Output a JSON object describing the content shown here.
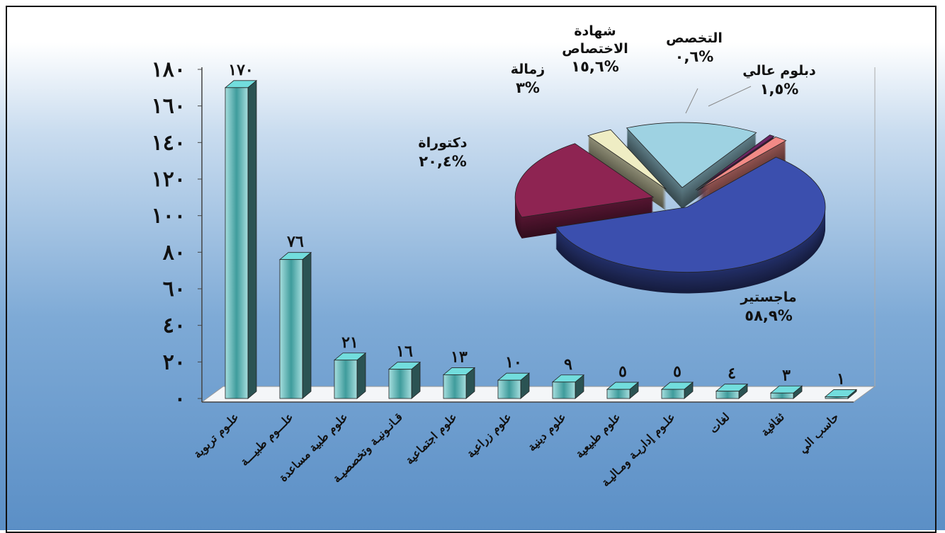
{
  "chart_data": [
    {
      "type": "bar3d",
      "categories": [
        "علـوم تربوية",
        "علـــوم طبيـــة",
        "علوم طبية مساعدة",
        "قـانـونيـة وتخصصيـة",
        "علوم اجتماعية",
        "علوم زراعية",
        "علوم دينية",
        "علوم طبيعية",
        "علـوم إداريـة ومـاليـة",
        "لغات",
        "ثقافية",
        "حاسب الي"
      ],
      "values": [
        170,
        76,
        21,
        16,
        13,
        10,
        9,
        5,
        5,
        4,
        3,
        1
      ],
      "value_labels": [
        "١٧٠",
        "٧٦",
        "٢١",
        "١٦",
        "١٣",
        "١٠",
        "٩",
        "٥",
        "٥",
        "٤",
        "٣",
        "١"
      ],
      "color": "#5fb8b8",
      "ylim": [
        0,
        180
      ],
      "yticks": [
        {
          "value": 0,
          "label": "٠"
        },
        {
          "value": 20,
          "label": "٢٠"
        },
        {
          "value": 40,
          "label": "٤٠"
        },
        {
          "value": 60,
          "label": "٦٠"
        },
        {
          "value": 80,
          "label": "٨٠"
        },
        {
          "value": 100,
          "label": "١٠٠"
        },
        {
          "value": 120,
          "label": "١٢٠"
        },
        {
          "value": 140,
          "label": "١٤٠"
        },
        {
          "value": 160,
          "label": "١٦٠"
        },
        {
          "value": 180,
          "label": "١٨٠"
        }
      ]
    },
    {
      "type": "pie3d",
      "categories": [
        "ماجستير",
        "دكتوراة",
        "زمالة",
        "شهادة الاختصاص",
        "التخصص",
        "دبلوم عالي"
      ],
      "values": [
        58.9,
        20.4,
        3,
        15.6,
        0.6,
        1.5
      ],
      "value_labels": [
        "%٥٨,٩",
        "%٢٠,٤",
        "%٣",
        "%١٥,٦",
        "%٠,٦",
        "%١,٥"
      ],
      "colors": [
        "#3b4fae",
        "#8e2452",
        "#efedc4",
        "#9ed2e2",
        "#6d2565",
        "#f28a86"
      ]
    }
  ]
}
